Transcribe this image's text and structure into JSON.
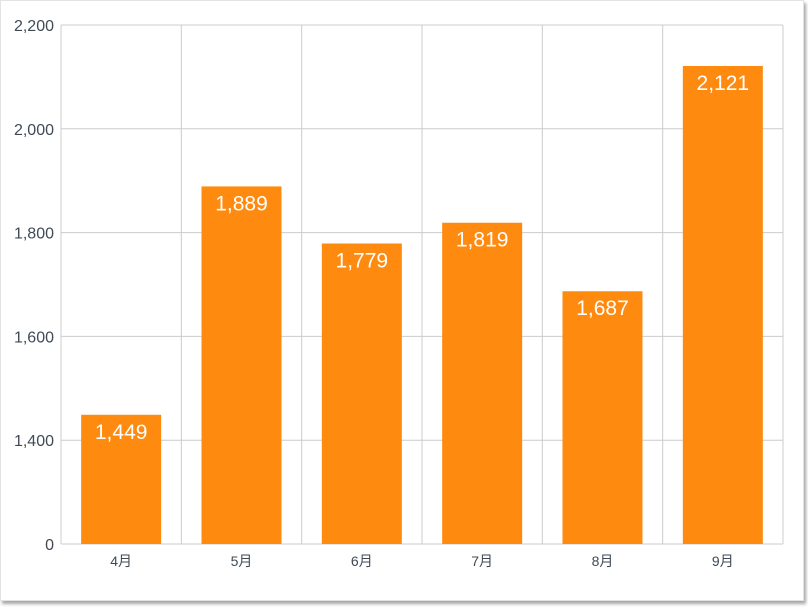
{
  "chart_data": {
    "type": "bar",
    "categories": [
      "4月",
      "5月",
      "6月",
      "7月",
      "8月",
      "9月"
    ],
    "values": [
      1449,
      1889,
      1779,
      1819,
      1687,
      2121
    ],
    "value_labels": [
      "1,449",
      "1,889",
      "1,779",
      "1,819",
      "1,687",
      "2,121"
    ],
    "yticks": [
      "2,200",
      "2,000",
      "1,800",
      "1,600",
      "1,400",
      "0"
    ],
    "ytick_values": [
      2200,
      2000,
      1800,
      1600,
      1400,
      1200
    ],
    "axis_break": "lowest tick printed as 0",
    "ylim": [
      1200,
      2200
    ],
    "title": "",
    "xlabel": "",
    "ylabel": "",
    "grid": true,
    "legend": "none",
    "bar_color": "#ff8a10",
    "grid_color": "#cccccc",
    "label_color": "#ffffff"
  }
}
